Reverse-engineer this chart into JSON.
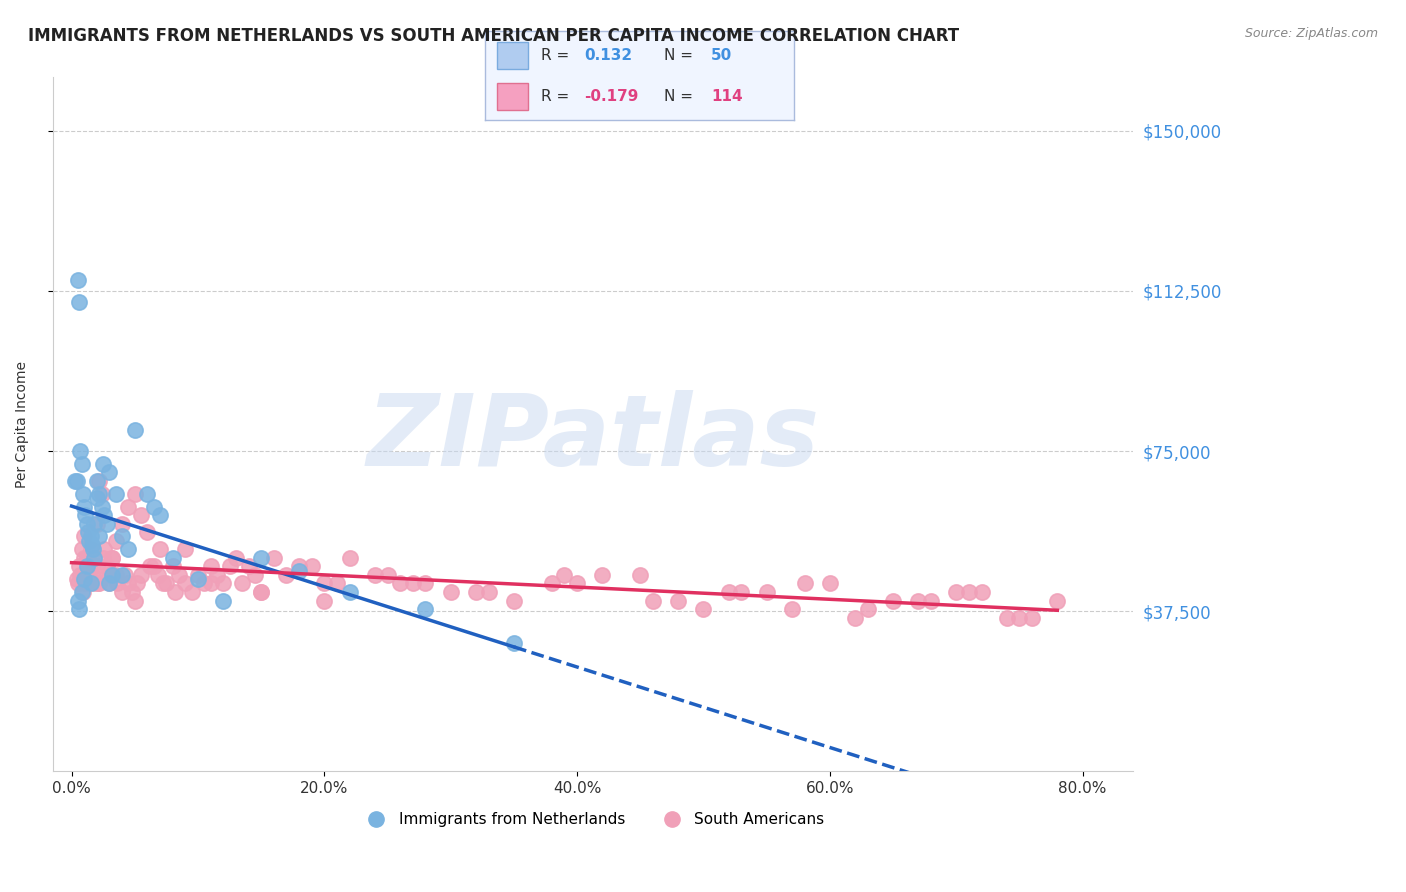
{
  "title": "IMMIGRANTS FROM NETHERLANDS VS SOUTH AMERICAN PER CAPITA INCOME CORRELATION CHART",
  "source": "Source: ZipAtlas.com",
  "ylabel": "Per Capita Income",
  "xlabel_ticks": [
    "0.0%",
    "20.0%",
    "40.0%",
    "60.0%",
    "80.0%"
  ],
  "xlabel_vals": [
    0.0,
    20.0,
    40.0,
    60.0,
    80.0
  ],
  "ytick_labels": [
    "$37,500",
    "$75,000",
    "$112,500",
    "$150,000"
  ],
  "ytick_vals": [
    37500,
    75000,
    112500,
    150000
  ],
  "ylim": [
    0,
    162500
  ],
  "xlim": [
    -1.5,
    84
  ],
  "series1_name": "Immigrants from Netherlands",
  "series1_R": 0.132,
  "series1_N": 50,
  "series1_color": "#7ab3e0",
  "series1_trend_color": "#2060c0",
  "series2_name": "South Americans",
  "series2_R": -0.179,
  "series2_N": 114,
  "series2_color": "#f0a0b8",
  "series2_trend_color": "#e03060",
  "legend_box_color": "#dde8f5",
  "legend_border_color": "#aabbdd",
  "R1_color": "#4090e0",
  "R2_color": "#e04080",
  "N1_color": "#4090e0",
  "N2_color": "#e04080",
  "watermark": "ZIPatlas",
  "watermark_color": "#c8d8f0",
  "title_fontsize": 12,
  "axis_label_fontsize": 10,
  "tick_label_fontsize": 11,
  "background_color": "#ffffff",
  "grid_color": "#cccccc",
  "series1_x": [
    0.3,
    0.5,
    0.6,
    0.7,
    0.8,
    0.9,
    1.0,
    1.1,
    1.2,
    1.3,
    1.4,
    1.5,
    1.6,
    1.7,
    1.8,
    2.0,
    2.2,
    2.4,
    2.6,
    2.8,
    3.0,
    3.5,
    4.0,
    4.5,
    5.0,
    6.0,
    7.0,
    8.0,
    10.0,
    12.0,
    15.0,
    18.0,
    22.0,
    28.0,
    35.0,
    3.2,
    1.0,
    0.8,
    1.2,
    2.0,
    2.5,
    1.5,
    0.5,
    0.6,
    3.0,
    4.0,
    0.4,
    1.8,
    2.2,
    6.5
  ],
  "series1_y": [
    68000,
    115000,
    110000,
    75000,
    72000,
    65000,
    62000,
    60000,
    58000,
    56000,
    54000,
    55000,
    53000,
    52000,
    50000,
    68000,
    65000,
    62000,
    60000,
    58000,
    70000,
    65000,
    55000,
    52000,
    80000,
    65000,
    60000,
    50000,
    45000,
    40000,
    50000,
    47000,
    42000,
    38000,
    30000,
    46000,
    45000,
    42000,
    48000,
    64000,
    72000,
    44000,
    40000,
    38000,
    44000,
    46000,
    68000,
    58000,
    55000,
    62000
  ],
  "series2_x": [
    0.4,
    0.6,
    0.8,
    1.0,
    1.2,
    1.4,
    1.6,
    1.8,
    2.0,
    2.2,
    2.4,
    2.6,
    2.8,
    3.0,
    3.2,
    3.5,
    4.0,
    4.5,
    5.0,
    5.5,
    6.0,
    7.0,
    8.0,
    9.0,
    10.0,
    11.0,
    12.0,
    13.0,
    14.0,
    15.0,
    17.0,
    18.0,
    20.0,
    22.0,
    25.0,
    28.0,
    30.0,
    35.0,
    40.0,
    45.0,
    50.0,
    55.0,
    60.0,
    65.0,
    70.0,
    75.0,
    1.0,
    1.5,
    2.0,
    2.5,
    3.0,
    3.5,
    4.0,
    4.5,
    5.0,
    5.5,
    6.5,
    7.5,
    8.5,
    9.5,
    10.5,
    11.5,
    12.5,
    13.5,
    14.5,
    16.0,
    19.0,
    21.0,
    24.0,
    27.0,
    32.0,
    38.0,
    42.0,
    48.0,
    53.0,
    58.0,
    63.0,
    68.0,
    72.0,
    76.0,
    1.2,
    2.2,
    3.2,
    4.2,
    5.2,
    6.2,
    7.2,
    8.2,
    0.5,
    0.7,
    0.9,
    1.1,
    1.3,
    1.6,
    2.1,
    2.8,
    3.6,
    4.8,
    6.8,
    9.0,
    11.0,
    15.0,
    20.0,
    26.0,
    33.0,
    39.0,
    46.0,
    52.0,
    57.0,
    62.0,
    67.0,
    71.0,
    74.0,
    78.0
  ],
  "series2_y": [
    45000,
    48000,
    52000,
    55000,
    50000,
    48000,
    46000,
    44000,
    58000,
    68000,
    65000,
    52000,
    48000,
    46000,
    50000,
    54000,
    58000,
    62000,
    65000,
    60000,
    56000,
    52000,
    48000,
    52000,
    46000,
    48000,
    44000,
    50000,
    48000,
    42000,
    46000,
    48000,
    44000,
    50000,
    46000,
    44000,
    42000,
    40000,
    44000,
    46000,
    38000,
    42000,
    44000,
    40000,
    42000,
    36000,
    50000,
    52000,
    48000,
    50000,
    44000,
    46000,
    42000,
    44000,
    40000,
    46000,
    48000,
    44000,
    46000,
    42000,
    44000,
    46000,
    48000,
    44000,
    46000,
    50000,
    48000,
    44000,
    46000,
    44000,
    42000,
    44000,
    46000,
    40000,
    42000,
    44000,
    38000,
    40000,
    42000,
    36000,
    46000,
    44000,
    50000,
    46000,
    44000,
    48000,
    44000,
    42000,
    44000,
    46000,
    42000,
    44000,
    46000,
    48000,
    44000,
    46000,
    44000,
    42000,
    46000,
    44000,
    44000,
    42000,
    40000,
    44000,
    42000,
    46000,
    40000,
    42000,
    38000,
    36000,
    40000,
    42000,
    36000,
    40000
  ]
}
